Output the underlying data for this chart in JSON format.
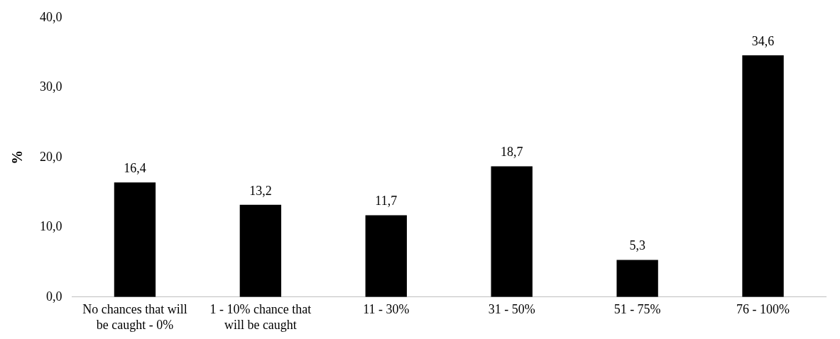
{
  "chart_data": {
    "type": "bar",
    "ylabel": "%",
    "categories": [
      "No chances that will be caught - 0%",
      "1 - 10% chance that will be caught",
      "11 - 30%",
      "31 - 50%",
      "51 - 75%",
      "76 - 100%"
    ],
    "values": [
      16.4,
      13.2,
      11.7,
      18.7,
      5.3,
      34.6
    ],
    "value_labels": [
      "16,4",
      "13,2",
      "11,7",
      "18,7",
      "5,3",
      "34,6"
    ],
    "color": "#000000",
    "ylim": [
      0,
      40
    ],
    "yticks": [
      {
        "value": 0,
        "label": "0,0"
      },
      {
        "value": 10,
        "label": "10,0"
      },
      {
        "value": 20,
        "label": "20,0"
      },
      {
        "value": 30,
        "label": "30,0"
      },
      {
        "value": 40,
        "label": "40,0"
      }
    ],
    "grid": false,
    "legend": false
  }
}
